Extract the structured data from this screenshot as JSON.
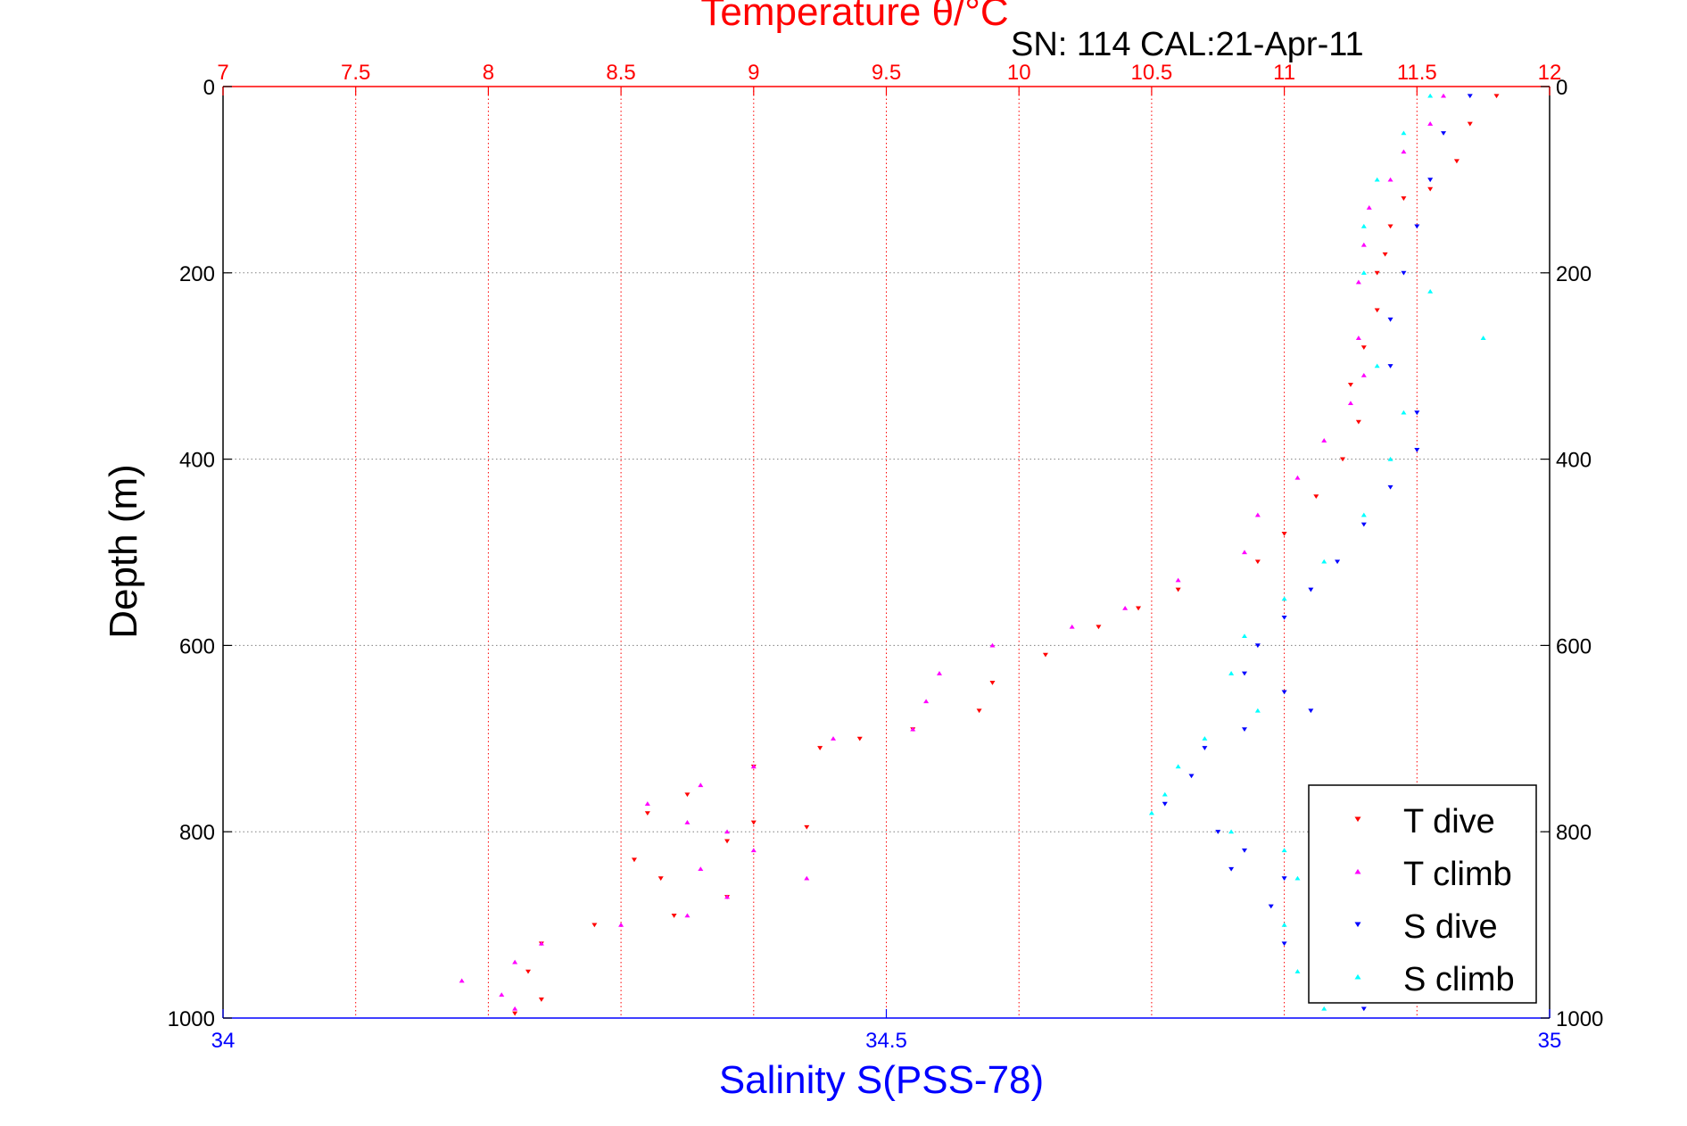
{
  "chart_data": {
    "type": "scatter",
    "title": "Temperature θ/°C",
    "subtitle": "SN: 114  CAL:21-Apr-11",
    "xlabel_top": "Temperature θ/°C",
    "xlabel_bottom": "Salinity S(PSS-78)",
    "ylabel": "Depth (m)",
    "ylim": [
      0,
      1000
    ],
    "y_reversed": true,
    "temperature_axis": {
      "range": [
        7,
        12
      ],
      "ticks": [
        "7",
        "7.5",
        "8",
        "8.5",
        "9",
        "9.5",
        "10",
        "10.5",
        "11",
        "11.5",
        "12"
      ]
    },
    "salinity_axis": {
      "range": [
        34,
        35
      ],
      "ticks": [
        "34",
        "34.5",
        "35"
      ]
    },
    "depth_ticks": [
      "0",
      "200",
      "400",
      "600",
      "800",
      "1000"
    ],
    "grid": true,
    "legend_position": "bottom-right",
    "colors": {
      "temp_axis": "#ff0000",
      "sal_axis": "#0000ff",
      "grid": "#808080"
    },
    "series": [
      {
        "name": "T dive",
        "axis": "temperature",
        "marker": "triangle-down",
        "color": "#ff0000",
        "points": [
          [
            11.8,
            10
          ],
          [
            11.7,
            40
          ],
          [
            11.65,
            80
          ],
          [
            11.55,
            110
          ],
          [
            11.45,
            120
          ],
          [
            11.4,
            150
          ],
          [
            11.38,
            180
          ],
          [
            11.35,
            200
          ],
          [
            11.35,
            240
          ],
          [
            11.3,
            280
          ],
          [
            11.25,
            320
          ],
          [
            11.28,
            360
          ],
          [
            11.22,
            400
          ],
          [
            11.12,
            440
          ],
          [
            11.0,
            480
          ],
          [
            10.9,
            510
          ],
          [
            10.6,
            540
          ],
          [
            10.45,
            560
          ],
          [
            10.3,
            580
          ],
          [
            10.1,
            610
          ],
          [
            9.9,
            640
          ],
          [
            9.85,
            670
          ],
          [
            9.6,
            690
          ],
          [
            9.4,
            700
          ],
          [
            9.25,
            710
          ],
          [
            9.0,
            730
          ],
          [
            8.75,
            760
          ],
          [
            8.6,
            780
          ],
          [
            9.0,
            790
          ],
          [
            9.2,
            795
          ],
          [
            8.9,
            810
          ],
          [
            8.55,
            830
          ],
          [
            8.65,
            850
          ],
          [
            8.9,
            870
          ],
          [
            8.7,
            890
          ],
          [
            8.4,
            900
          ],
          [
            8.2,
            920
          ],
          [
            8.15,
            950
          ],
          [
            8.2,
            980
          ],
          [
            8.1,
            995
          ]
        ]
      },
      {
        "name": "T climb",
        "axis": "temperature",
        "marker": "triangle-up",
        "color": "#ff00ff",
        "points": [
          [
            11.6,
            10
          ],
          [
            11.55,
            40
          ],
          [
            11.45,
            70
          ],
          [
            11.4,
            100
          ],
          [
            11.32,
            130
          ],
          [
            11.3,
            170
          ],
          [
            11.28,
            210
          ],
          [
            11.28,
            270
          ],
          [
            11.3,
            310
          ],
          [
            11.25,
            340
          ],
          [
            11.15,
            380
          ],
          [
            11.05,
            420
          ],
          [
            10.9,
            460
          ],
          [
            10.85,
            500
          ],
          [
            10.6,
            530
          ],
          [
            10.4,
            560
          ],
          [
            10.2,
            580
          ],
          [
            9.9,
            600
          ],
          [
            9.7,
            630
          ],
          [
            9.65,
            660
          ],
          [
            9.6,
            690
          ],
          [
            9.3,
            700
          ],
          [
            9.0,
            730
          ],
          [
            8.8,
            750
          ],
          [
            8.6,
            770
          ],
          [
            8.75,
            790
          ],
          [
            8.9,
            800
          ],
          [
            9.0,
            820
          ],
          [
            8.8,
            840
          ],
          [
            9.2,
            850
          ],
          [
            8.9,
            870
          ],
          [
            8.75,
            890
          ],
          [
            8.5,
            900
          ],
          [
            8.2,
            920
          ],
          [
            8.1,
            940
          ],
          [
            7.9,
            960
          ],
          [
            8.05,
            975
          ],
          [
            8.1,
            990
          ]
        ]
      },
      {
        "name": "S dive",
        "axis": "salinity",
        "marker": "triangle-down",
        "color": "#0000ff",
        "points": [
          [
            34.94,
            10
          ],
          [
            34.92,
            50
          ],
          [
            34.91,
            100
          ],
          [
            34.9,
            150
          ],
          [
            34.89,
            200
          ],
          [
            34.88,
            250
          ],
          [
            34.88,
            300
          ],
          [
            34.9,
            350
          ],
          [
            34.9,
            390
          ],
          [
            34.88,
            430
          ],
          [
            34.86,
            470
          ],
          [
            34.84,
            510
          ],
          [
            34.82,
            540
          ],
          [
            34.8,
            570
          ],
          [
            34.78,
            600
          ],
          [
            34.77,
            630
          ],
          [
            34.8,
            650
          ],
          [
            34.82,
            670
          ],
          [
            34.77,
            690
          ],
          [
            34.74,
            710
          ],
          [
            34.73,
            740
          ],
          [
            34.71,
            770
          ],
          [
            34.75,
            800
          ],
          [
            34.77,
            820
          ],
          [
            34.76,
            840
          ],
          [
            34.8,
            850
          ],
          [
            34.79,
            880
          ],
          [
            34.8,
            920
          ],
          [
            34.82,
            960
          ],
          [
            34.86,
            990
          ]
        ]
      },
      {
        "name": "S climb",
        "axis": "salinity",
        "marker": "triangle-up",
        "color": "#00ffff",
        "points": [
          [
            34.91,
            10
          ],
          [
            34.89,
            50
          ],
          [
            34.87,
            100
          ],
          [
            34.86,
            150
          ],
          [
            34.86,
            200
          ],
          [
            34.91,
            220
          ],
          [
            34.95,
            270
          ],
          [
            34.87,
            300
          ],
          [
            34.89,
            350
          ],
          [
            34.88,
            400
          ],
          [
            34.86,
            460
          ],
          [
            34.83,
            510
          ],
          [
            34.8,
            550
          ],
          [
            34.77,
            590
          ],
          [
            34.76,
            630
          ],
          [
            34.78,
            670
          ],
          [
            34.74,
            700
          ],
          [
            34.72,
            730
          ],
          [
            34.71,
            760
          ],
          [
            34.7,
            780
          ],
          [
            34.76,
            800
          ],
          [
            34.8,
            820
          ],
          [
            34.81,
            850
          ],
          [
            34.8,
            900
          ],
          [
            34.81,
            950
          ],
          [
            34.83,
            990
          ]
        ]
      }
    ]
  }
}
